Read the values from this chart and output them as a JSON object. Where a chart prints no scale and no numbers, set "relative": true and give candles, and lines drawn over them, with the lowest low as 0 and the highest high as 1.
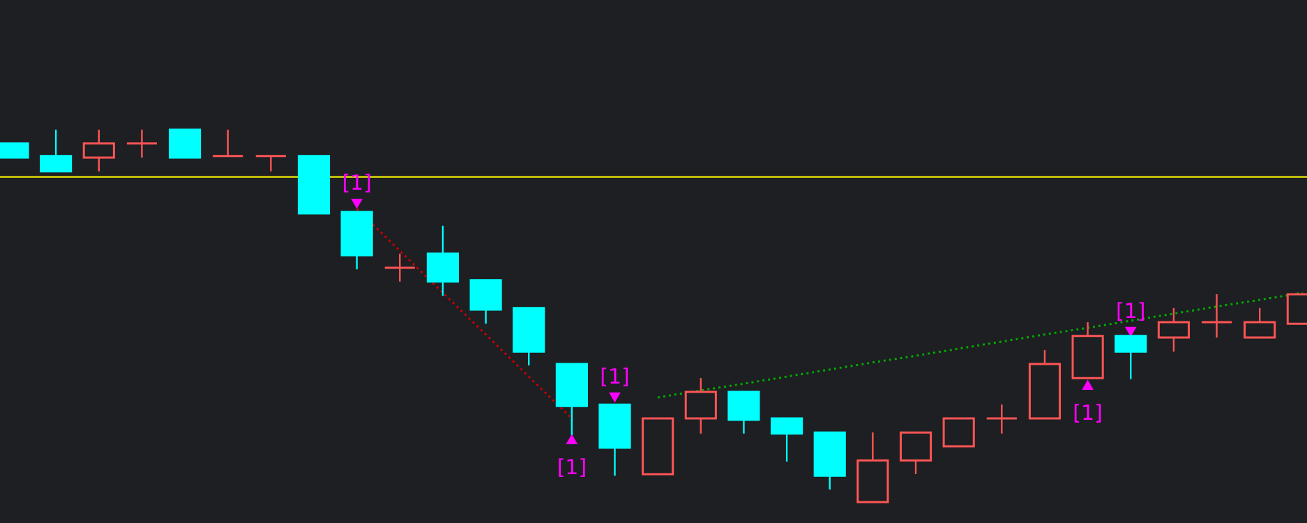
{
  "chart_data": {
    "type": "candlestick",
    "relative": true,
    "categories": [
      null,
      null,
      null,
      null,
      null,
      null,
      null,
      null,
      null,
      null,
      null,
      null,
      null,
      null,
      null,
      null,
      null,
      null,
      null,
      null,
      null,
      null,
      null,
      null,
      null,
      null,
      null,
      null,
      null,
      null,
      null
    ],
    "ohlc": [
      [
        0.963,
        0.963,
        0.925,
        0.925
      ],
      [
        0.929,
        1.0,
        0.888,
        0.888
      ],
      [
        0.925,
        1.0,
        0.888,
        0.963
      ],
      [
        0.963,
        1.0,
        0.925,
        0.963
      ],
      [
        1.0,
        1.0,
        0.925,
        0.925
      ],
      [
        0.929,
        1.0,
        0.929,
        0.929
      ],
      [
        0.929,
        0.929,
        0.888,
        0.929
      ],
      [
        0.929,
        0.929,
        0.775,
        0.775
      ],
      [
        0.779,
        0.779,
        0.625,
        0.663
      ],
      [
        0.629,
        0.667,
        0.592,
        0.629
      ],
      [
        0.667,
        0.742,
        0.554,
        0.592
      ],
      [
        0.596,
        0.596,
        0.479,
        0.517
      ],
      [
        0.521,
        0.521,
        0.367,
        0.404
      ],
      [
        0.371,
        0.371,
        0.18,
        0.258
      ],
      [
        0.262,
        0.262,
        0.071,
        0.146
      ],
      [
        0.075,
        0.225,
        0.075,
        0.225
      ],
      [
        0.225,
        0.333,
        0.184,
        0.296
      ],
      [
        0.296,
        0.296,
        0.184,
        0.221
      ],
      [
        0.225,
        0.225,
        0.109,
        0.184
      ],
      [
        0.187,
        0.187,
        0.034,
        0.071
      ],
      [
        0.0,
        0.187,
        0.0,
        0.112
      ],
      [
        0.112,
        0.187,
        0.075,
        0.187
      ],
      [
        0.15,
        0.225,
        0.15,
        0.225
      ],
      [
        0.225,
        0.262,
        0.184,
        0.225
      ],
      [
        0.225,
        0.408,
        0.225,
        0.371
      ],
      [
        0.333,
        0.483,
        0.333,
        0.446
      ],
      [
        0.446,
        0.446,
        0.33,
        0.404
      ],
      [
        0.442,
        0.521,
        0.404,
        0.483
      ],
      [
        0.483,
        0.558,
        0.442,
        0.483
      ],
      [
        0.442,
        0.521,
        0.442,
        0.483
      ],
      [
        0.479,
        0.558,
        0.479,
        0.558
      ]
    ],
    "colors": [
      "#00ffff",
      "#00ffff",
      "#ff5555",
      "#ff5555",
      "#00ffff",
      "#ff5555",
      "#ff5555",
      "#00ffff",
      "#00ffff",
      "#ff5555",
      "#00ffff",
      "#00ffff",
      "#00ffff",
      "#00ffff",
      "#00ffff",
      "#ff5555",
      "#ff5555",
      "#00ffff",
      "#00ffff",
      "#00ffff",
      "#ff5555",
      "#ff5555",
      "#ff5555",
      "#ff5555",
      "#ff5555",
      "#ff5555",
      "#00ffff",
      "#ff5555",
      "#ff5555",
      "#ff5555",
      "#ff5555"
    ],
    "ref_lines": [
      {
        "axis": "y",
        "value": 0.873,
        "color": "#ffff00"
      }
    ],
    "annotations": [
      "[1]",
      "[1]",
      "[1]",
      "[1]",
      "[1]"
    ],
    "series": [
      {
        "type": "line",
        "color": "#cc0000",
        "line_style": "dotted",
        "values": [
          null,
          null,
          null,
          null,
          null,
          null,
          null,
          null,
          0.787,
          0.675,
          0.562,
          0.45,
          0.337,
          0.225,
          null,
          null,
          null,
          null,
          null,
          null,
          null,
          null,
          null,
          null,
          null,
          null,
          null,
          null,
          null,
          null,
          null
        ]
      },
      {
        "type": "line",
        "color": "#00aa00",
        "line_style": "dotted",
        "values": [
          null,
          null,
          null,
          null,
          null,
          null,
          null,
          null,
          null,
          null,
          null,
          null,
          null,
          null,
          null,
          0.281,
          0.3,
          0.318,
          0.337,
          0.356,
          0.375,
          0.393,
          0.412,
          0.431,
          0.45,
          0.468,
          0.487,
          0.506,
          0.525,
          0.543,
          0.562
        ]
      },
      {
        "type": "scatter",
        "marker": "triangle",
        "color": "#ff00ff",
        "values": [
          null,
          null,
          null,
          null,
          null,
          null,
          null,
          null,
          0.801,
          null,
          null,
          null,
          null,
          null,
          0.281,
          null,
          null,
          null,
          null,
          null,
          null,
          null,
          null,
          null,
          null,
          null,
          0.457,
          null,
          null,
          null,
          null
        ]
      },
      {
        "type": "scatter",
        "marker": "triangle",
        "color": "#ff00ff",
        "values": [
          null,
          null,
          null,
          null,
          null,
          null,
          null,
          null,
          null,
          null,
          null,
          null,
          null,
          0.169,
          null,
          null,
          null,
          null,
          null,
          null,
          null,
          null,
          null,
          null,
          null,
          0.315,
          null,
          null,
          null,
          null,
          null
        ]
      }
    ]
  }
}
